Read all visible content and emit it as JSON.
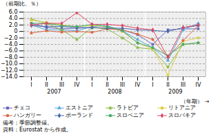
{
  "chart_data": {
    "type": "line",
    "title": "（前期比、％）",
    "xlabel": "（年期）",
    "categories": [
      "I",
      "II",
      "III",
      "IV",
      "I",
      "II",
      "III",
      "IV",
      "I",
      "II",
      "III",
      "IV"
    ],
    "year_labels": [
      "2007",
      "2008",
      "2009"
    ],
    "notes": [
      "備考：季節調整値。",
      "資料：Eurostat から作成。"
    ],
    "ylim": [
      -14.0,
      6.0
    ],
    "yticks": [
      {
        "value": 6.0,
        "label": "6.0"
      },
      {
        "value": 4.0,
        "label": "4.0"
      },
      {
        "value": 2.0,
        "label": "2.0"
      },
      0,
      {
        "value": -2.0,
        "label": "−2.0"
      },
      {
        "value": -4.0,
        "label": "−4.0"
      },
      {
        "value": -6.0,
        "label": "−6.0"
      },
      {
        "value": -8.0,
        "label": "−8.0"
      },
      {
        "value": -10.0,
        "label": "−10.0"
      },
      {
        "value": -12.0,
        "label": "−12.0"
      },
      {
        "value": -14.0,
        "label": "−14.0"
      }
    ],
    "grid": true,
    "legend": "bottom",
    "series": [
      {
        "name": "チェコ",
        "color": "#6666bb",
        "marker": "square",
        "values": [
          2.5,
          1.2,
          0.8,
          1.0,
          1.2,
          1.0,
          0.5,
          -1.0,
          -4.0,
          0.5,
          0.8,
          0.8
        ]
      },
      {
        "name": "エストニア",
        "color": "#55aadd",
        "marker": "triangle",
        "values": [
          2.0,
          0.5,
          0.5,
          0.2,
          1.5,
          1.8,
          0.2,
          -2.5,
          -5.0,
          -9.0,
          0.5,
          2.5
        ]
      },
      {
        "name": "ラトビア",
        "color": "#88bb44",
        "marker": "star",
        "values": [
          3.8,
          2.5,
          0.5,
          -2.5,
          1.2,
          0.8,
          -2.0,
          -5.0,
          -5.5,
          -11.0,
          -4.0,
          -3.5
        ]
      },
      {
        "name": "リトアニア",
        "color": "#ddcc44",
        "marker": "square",
        "values": [
          3.5,
          2.8,
          2.0,
          1.5,
          1.8,
          1.5,
          0.0,
          -3.5,
          -5.5,
          -13.5,
          -3.0,
          -2.0
        ]
      },
      {
        "name": "ハンガリー",
        "color": "#dd6644",
        "marker": "circle",
        "values": [
          -0.5,
          0.2,
          -0.2,
          0.0,
          -0.3,
          0.8,
          0.5,
          -0.8,
          -2.5,
          -8.0,
          -2.8,
          1.8
        ]
      },
      {
        "name": "ポーランド",
        "color": "#4466aa",
        "marker": "diamond",
        "values": [
          1.8,
          1.5,
          1.5,
          1.2,
          1.2,
          1.0,
          1.0,
          0.5,
          0.3,
          0.0,
          1.2,
          1.8
        ]
      },
      {
        "name": "スロベニア",
        "color": "#44aa66",
        "marker": "circle",
        "values": [
          2.5,
          2.5,
          1.8,
          1.5,
          2.2,
          1.5,
          0.2,
          -3.5,
          -5.0,
          -7.5,
          -4.0,
          -3.5
        ]
      },
      {
        "name": "スロバキア",
        "color": "#dd4466",
        "marker": "diamond",
        "values": [
          2.0,
          2.5,
          2.5,
          5.8,
          2.2,
          2.2,
          1.8,
          1.0,
          0.5,
          -8.0,
          1.2,
          2.0
        ]
      }
    ]
  }
}
